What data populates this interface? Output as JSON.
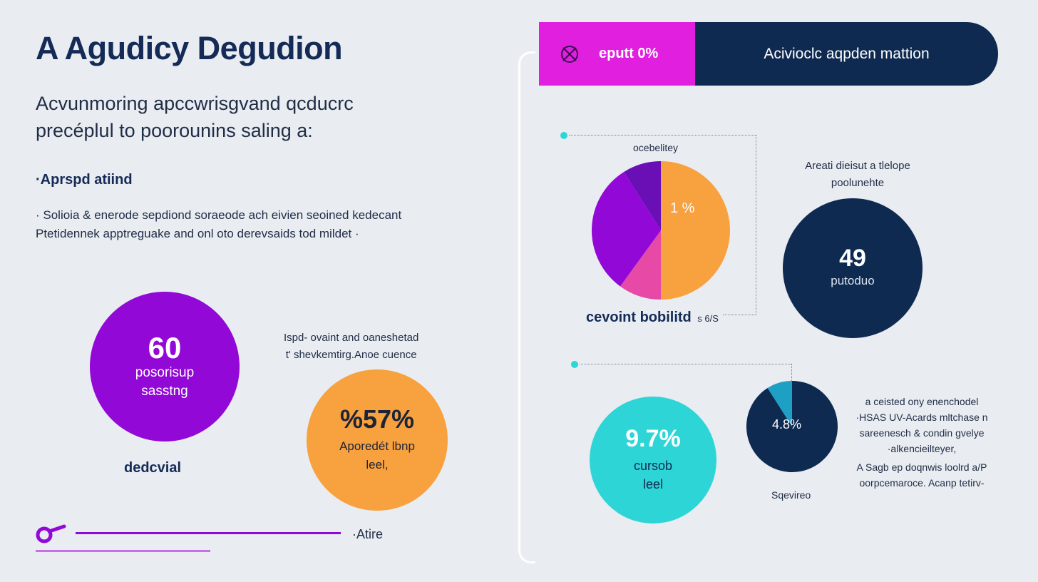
{
  "header": {
    "title": "A Agudicy Degudion",
    "subtitle_line1": "Acvunmoring apccwrisgvand qcducrc",
    "subtitle_line2": "precéplul to poorounins saling a:",
    "section_heading": "·Aprspd atiind",
    "body_line1": "· Solioia & enerode sepdiond soraeode ach eivien seoined kedecant",
    "body_line2": "Ptetidennek apptreguake and onl oto derevsaids tod mildet ·"
  },
  "banner": {
    "left_label": "eputt 0%",
    "left_icon": "logo-icon",
    "right_label": "Acivioclc aqpden mattion",
    "left_color": "#e01fdf",
    "right_color": "#0f2a50"
  },
  "stats": {
    "purple": {
      "value": "60",
      "line1": "posorisup",
      "line2": "sasstng",
      "caption": "dedcvial",
      "color": "#9208d6"
    },
    "orange": {
      "value": "%57%",
      "line1": "Aporedét lbnp",
      "line2": "leel,",
      "color": "#f8a13f"
    },
    "orange_note": {
      "line1": "Ispd- ovaint and oaneshetad",
      "line2": "t' shevkemtirg.Anoe cuence"
    },
    "navy": {
      "value": "49",
      "line1": "putoduo",
      "color": "#0f2a50"
    },
    "navy_note": {
      "line1": "Areati dieisut a tlelope",
      "line2": "poolunehte"
    },
    "teal": {
      "value": "9.7%",
      "line1": "cursob",
      "line2": "leel",
      "color": "#2ed5d6"
    }
  },
  "footer": {
    "label": "·Atire",
    "icon": "key-icon",
    "line_color": "#9208d6"
  },
  "chart_data": [
    {
      "type": "pie",
      "title": "ocebelitey",
      "caption": "cevoint bobilitd",
      "caption_suffix": "s 6/S",
      "slice_label": "1 %",
      "slices": [
        {
          "value": 50,
          "color": "#f8a13f"
        },
        {
          "value": 10,
          "color": "#e64aa6"
        },
        {
          "value": 31,
          "color": "#9208d6"
        },
        {
          "value": 9,
          "color": "#6a0fb5"
        }
      ]
    },
    {
      "type": "pie",
      "slice_label": "4.8%",
      "slices": [
        {
          "value": 91,
          "color": "#0f2a50"
        },
        {
          "value": 9,
          "color": "#1e9fc4"
        }
      ],
      "side_notes": [
        "a ceisted ony enenchodel",
        "·HSAS UV-Acards mltchase n",
        "sareenesch & condin gvelye",
        "·alkencieilteyer,",
        "A Sagb ep doqnwis loolrd a/P",
        "oorpcemaroce. Acanp tetirv-"
      ],
      "footnote": "Sqevireo"
    }
  ]
}
